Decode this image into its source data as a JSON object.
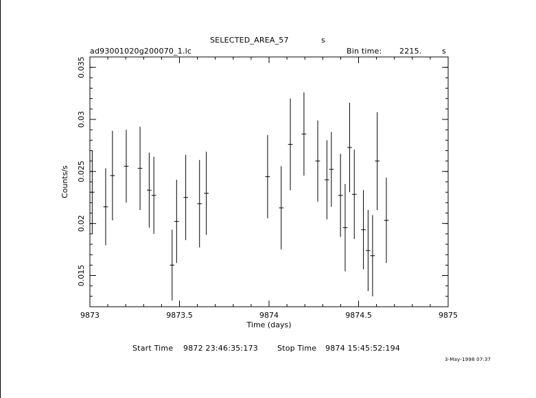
{
  "header": {
    "plot_title": "SELECTED_AREA_57",
    "title_unit": "s",
    "filename": "ad93001020g200070_1.lc",
    "bin_time_label": "Bin time:",
    "bin_time_value": "2215.",
    "bin_time_unit": "s"
  },
  "footer": {
    "start_label": "Start Time",
    "start_value": "9872 23:46:35:173",
    "stop_label": "Stop Time",
    "stop_value": "9874 15:45:52:194",
    "date_stamp": "3-May-1998 07:37"
  },
  "chart_data": {
    "type": "scatter",
    "xlabel": "Time (days)",
    "ylabel": "Counts/s",
    "xlim": [
      9873,
      9875
    ],
    "ylim": [
      0.012,
      0.036
    ],
    "x_ticks": [
      9873,
      9873.5,
      9874,
      9874.5,
      9875
    ],
    "x_tick_labels": [
      "9873",
      "9873.5",
      "9874",
      "9874.5",
      "9875"
    ],
    "y_ticks": [
      0.015,
      0.02,
      0.025,
      0.03,
      0.035
    ],
    "y_tick_labels": [
      "0.015",
      "0.02",
      "0.025",
      "0.03",
      "0.035"
    ],
    "half_bin_days": 0.0128,
    "points": [
      {
        "x": 9873.013,
        "y": 0.023,
        "err": 0.004
      },
      {
        "x": 9873.088,
        "y": 0.0216,
        "err": 0.0037
      },
      {
        "x": 9873.126,
        "y": 0.0246,
        "err": 0.0043
      },
      {
        "x": 9873.203,
        "y": 0.0255,
        "err": 0.0035
      },
      {
        "x": 9873.28,
        "y": 0.0253,
        "err": 0.004
      },
      {
        "x": 9873.331,
        "y": 0.0232,
        "err": 0.0036
      },
      {
        "x": 9873.357,
        "y": 0.0227,
        "err": 0.0037
      },
      {
        "x": 9873.459,
        "y": 0.016,
        "err": 0.0034
      },
      {
        "x": 9873.484,
        "y": 0.0202,
        "err": 0.004
      },
      {
        "x": 9873.535,
        "y": 0.0225,
        "err": 0.0041
      },
      {
        "x": 9873.612,
        "y": 0.0219,
        "err": 0.0042
      },
      {
        "x": 9873.65,
        "y": 0.0229,
        "err": 0.004
      },
      {
        "x": 9873.992,
        "y": 0.0245,
        "err": 0.004
      },
      {
        "x": 9874.068,
        "y": 0.0215,
        "err": 0.004
      },
      {
        "x": 9874.119,
        "y": 0.0276,
        "err": 0.0044
      },
      {
        "x": 9874.195,
        "y": 0.0286,
        "err": 0.004
      },
      {
        "x": 9874.272,
        "y": 0.026,
        "err": 0.0039
      },
      {
        "x": 9874.323,
        "y": 0.0242,
        "err": 0.0038
      },
      {
        "x": 9874.348,
        "y": 0.0252,
        "err": 0.0036
      },
      {
        "x": 9874.399,
        "y": 0.0227,
        "err": 0.004
      },
      {
        "x": 9874.425,
        "y": 0.0196,
        "err": 0.0042
      },
      {
        "x": 9874.45,
        "y": 0.0273,
        "err": 0.0043
      },
      {
        "x": 9874.476,
        "y": 0.0228,
        "err": 0.0043
      },
      {
        "x": 9874.527,
        "y": 0.0194,
        "err": 0.0038
      },
      {
        "x": 9874.553,
        "y": 0.0174,
        "err": 0.0039
      },
      {
        "x": 9874.578,
        "y": 0.0169,
        "err": 0.0039
      },
      {
        "x": 9874.604,
        "y": 0.026,
        "err": 0.0047
      },
      {
        "x": 9874.655,
        "y": 0.0203,
        "err": 0.0041
      }
    ]
  }
}
